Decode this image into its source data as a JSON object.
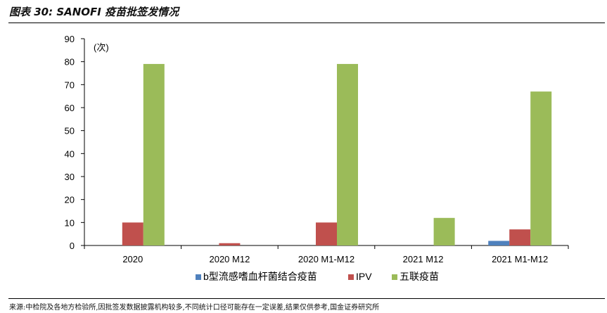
{
  "figure": {
    "title": "图表 30:  SANOFI 疫苗批签发情况",
    "source": "来源:中检院及各地方检验所,因批签发数据披露机构较多,不同统计口径可能存在一定误差,结果仅供参考,国金证券研究所"
  },
  "chart_data": {
    "type": "bar",
    "categories": [
      "2020",
      "2020 M12",
      "2020 M1-M12",
      "2021 M12",
      "2021 M1-M12"
    ],
    "series": [
      {
        "name": "b型流感嗜血杆菌结合疫苗",
        "color": "#4f81bd",
        "values": [
          0,
          0,
          0,
          0,
          2
        ]
      },
      {
        "name": "IPV",
        "color": "#c0504d",
        "values": [
          10,
          1,
          10,
          0,
          7
        ]
      },
      {
        "name": "五联疫苗",
        "color": "#9bbb59",
        "values": [
          79,
          0,
          79,
          12,
          67
        ]
      }
    ],
    "unit_label": "(次)",
    "yticks": [
      "0",
      "10",
      "20",
      "30",
      "40",
      "50",
      "60",
      "70",
      "80",
      "90"
    ],
    "ylim": [
      0,
      90
    ],
    "grid": false,
    "legend": "bottom"
  }
}
